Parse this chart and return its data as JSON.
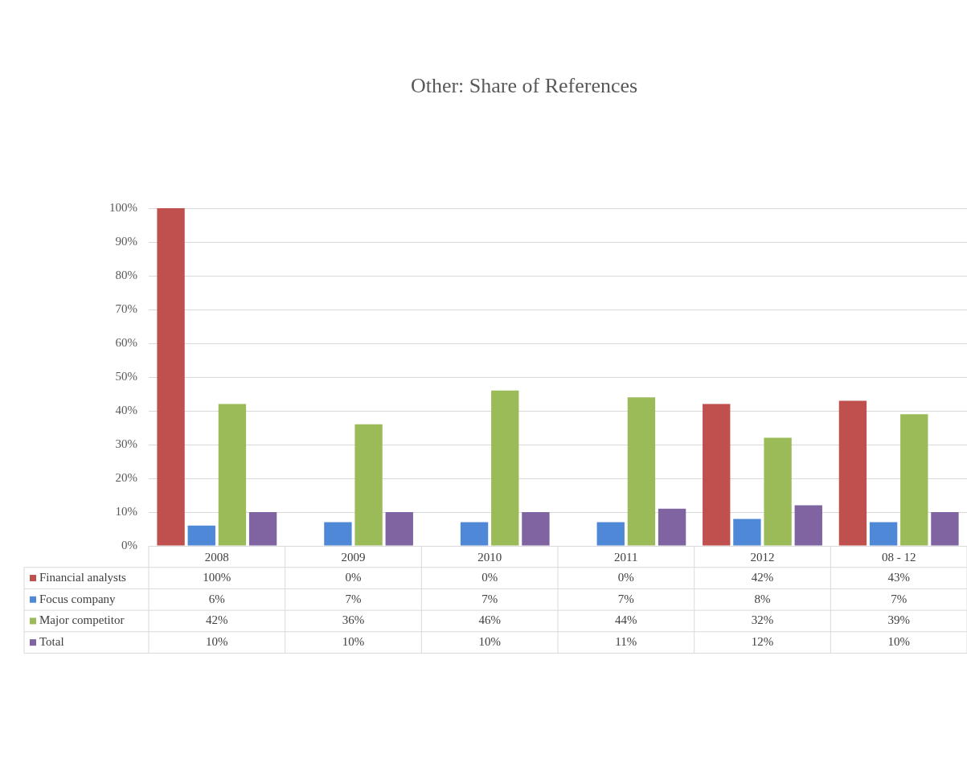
{
  "chart_data": {
    "type": "bar",
    "title": "Other: Share of References",
    "categories": [
      "2008",
      "2009",
      "2010",
      "2011",
      "2012",
      "08 - 12"
    ],
    "series": [
      {
        "name": "Financial analysts",
        "color": "#c0504d",
        "values": [
          100,
          0,
          0,
          0,
          42,
          43
        ],
        "value_labels": [
          "100%",
          "0%",
          "0%",
          "0%",
          "42%",
          "43%"
        ]
      },
      {
        "name": "Focus company",
        "color": "#4f88d6",
        "values": [
          6,
          7,
          7,
          7,
          8,
          7
        ],
        "value_labels": [
          "6%",
          "7%",
          "7%",
          "7%",
          "8%",
          "7%"
        ]
      },
      {
        "name": "Major competitor",
        "color": "#9bbb59",
        "values": [
          42,
          36,
          46,
          44,
          32,
          39
        ],
        "value_labels": [
          "42%",
          "36%",
          "46%",
          "44%",
          "32%",
          "39%"
        ]
      },
      {
        "name": "Total",
        "color": "#8064a2",
        "values": [
          10,
          10,
          10,
          11,
          12,
          10
        ],
        "value_labels": [
          "10%",
          "10%",
          "10%",
          "11%",
          "12%",
          "10%"
        ]
      }
    ],
    "ylim": [
      0,
      100
    ],
    "yticks": [
      {
        "value": 0,
        "label": "0%"
      },
      {
        "value": 10,
        "label": "10%"
      },
      {
        "value": 20,
        "label": "20%"
      },
      {
        "value": 30,
        "label": "30%"
      },
      {
        "value": 40,
        "label": "40%"
      },
      {
        "value": 50,
        "label": "50%"
      },
      {
        "value": 60,
        "label": "60%"
      },
      {
        "value": 70,
        "label": "70%"
      },
      {
        "value": 80,
        "label": "80%"
      },
      {
        "value": 90,
        "label": "90%"
      },
      {
        "value": 100,
        "label": "100%"
      }
    ],
    "grid": "y",
    "legend": "bottom"
  }
}
